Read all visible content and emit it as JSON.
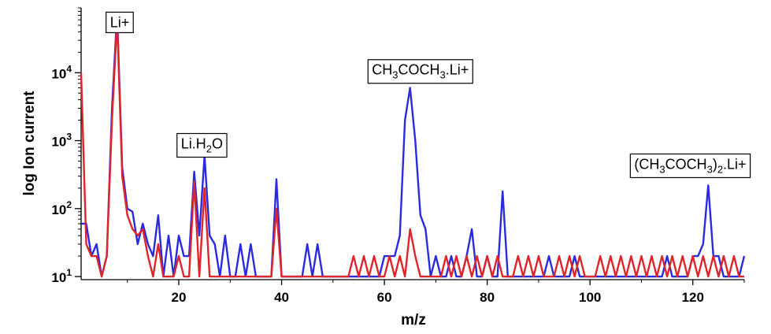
{
  "chart_data": {
    "type": "line",
    "xlabel": "m/z",
    "ylabel": "log Ion current",
    "yscale": "log",
    "xlim": [
      1,
      130
    ],
    "ylim": [
      9,
      90000
    ],
    "grid": false,
    "x_ticks": [
      20,
      40,
      60,
      80,
      100,
      120
    ],
    "x_tick_labels": [
      "20",
      "40",
      "60",
      "80",
      "100",
      "120"
    ],
    "y_ticks": [
      10,
      100,
      1000,
      10000
    ],
    "y_tick_labels": [
      {
        "base": "10",
        "exp": "1"
      },
      {
        "base": "10",
        "exp": "2"
      },
      {
        "base": "10",
        "exp": "3"
      },
      {
        "base": "10",
        "exp": "4"
      }
    ],
    "annotations": [
      {
        "x": 8.5,
        "y": 55000,
        "parts": [
          {
            "t": "Li+"
          }
        ]
      },
      {
        "x": 24.5,
        "y": 900,
        "parts": [
          {
            "t": "Li.H"
          },
          {
            "t": "2",
            "sub": true
          },
          {
            "t": "O"
          }
        ]
      },
      {
        "x": 67,
        "y": 11000,
        "parts": [
          {
            "t": "CH"
          },
          {
            "t": "3",
            "sub": true
          },
          {
            "t": "COCH"
          },
          {
            "t": "3",
            "sub": true
          },
          {
            "t": ".Li+"
          }
        ]
      },
      {
        "x": 119.5,
        "y": 450,
        "parts": [
          {
            "t": "(CH"
          },
          {
            "t": "3",
            "sub": true
          },
          {
            "t": "COCH"
          },
          {
            "t": "3",
            "sub": true
          },
          {
            "t": ")"
          },
          {
            "t": "2",
            "sub": true
          },
          {
            "t": ".Li+"
          }
        ]
      }
    ],
    "series": [
      {
        "color": "#2a2ae0",
        "x": [
          1,
          2,
          3,
          4,
          5,
          6,
          7,
          8,
          9,
          10,
          11,
          12,
          13,
          14,
          15,
          16,
          17,
          18,
          19,
          20,
          21,
          22,
          23,
          24,
          25,
          26,
          27,
          28,
          29,
          30,
          31,
          32,
          33,
          34,
          35,
          36,
          37,
          38,
          39,
          40,
          41,
          42,
          43,
          44,
          45,
          46,
          47,
          48,
          49,
          50,
          51,
          52,
          53,
          54,
          55,
          56,
          57,
          58,
          59,
          60,
          61,
          62,
          63,
          64,
          65,
          66,
          67,
          68,
          69,
          70,
          71,
          72,
          73,
          74,
          75,
          76,
          77,
          78,
          79,
          80,
          81,
          82,
          83,
          84,
          85,
          86,
          87,
          88,
          89,
          90,
          91,
          92,
          93,
          94,
          95,
          96,
          97,
          98,
          99,
          100,
          101,
          102,
          103,
          104,
          105,
          106,
          107,
          108,
          109,
          110,
          111,
          112,
          113,
          114,
          115,
          116,
          117,
          118,
          119,
          120,
          121,
          122,
          123,
          124,
          125,
          126,
          127,
          128,
          129,
          130
        ],
        "y": [
          60,
          60,
          20,
          30,
          10,
          20,
          3000,
          75000,
          400,
          100,
          90,
          30,
          60,
          30,
          20,
          80,
          10,
          40,
          10,
          40,
          20,
          20,
          350,
          40,
          600,
          40,
          30,
          10,
          40,
          10,
          10,
          30,
          10,
          30,
          10,
          10,
          10,
          10,
          270,
          10,
          10,
          10,
          10,
          10,
          30,
          10,
          30,
          10,
          10,
          10,
          10,
          10,
          10,
          10,
          10,
          10,
          10,
          10,
          10,
          20,
          20,
          20,
          40,
          2000,
          6000,
          1000,
          80,
          50,
          10,
          20,
          10,
          10,
          20,
          10,
          10,
          20,
          50,
          10,
          10,
          20,
          10,
          10,
          180,
          10,
          10,
          10,
          10,
          10,
          10,
          10,
          10,
          20,
          10,
          10,
          10,
          10,
          20,
          10,
          10,
          10,
          10,
          10,
          10,
          10,
          10,
          10,
          10,
          10,
          10,
          10,
          10,
          10,
          10,
          10,
          20,
          10,
          10,
          10,
          10,
          20,
          20,
          30,
          220,
          20,
          20,
          10,
          10,
          10,
          10,
          20
        ]
      },
      {
        "color": "#e0252a",
        "x": [
          1,
          2,
          3,
          4,
          5,
          6,
          7,
          8,
          9,
          10,
          11,
          12,
          13,
          14,
          15,
          16,
          17,
          18,
          19,
          20,
          21,
          22,
          23,
          24,
          25,
          26,
          27,
          28,
          29,
          30,
          31,
          32,
          33,
          34,
          35,
          36,
          37,
          38,
          39,
          40,
          41,
          42,
          43,
          44,
          45,
          46,
          47,
          48,
          49,
          50,
          51,
          52,
          53,
          54,
          55,
          56,
          57,
          58,
          59,
          60,
          61,
          62,
          63,
          64,
          65,
          66,
          67,
          68,
          69,
          70,
          71,
          72,
          73,
          74,
          75,
          76,
          77,
          78,
          79,
          80,
          81,
          82,
          83,
          84,
          85,
          86,
          87,
          88,
          89,
          90,
          91,
          92,
          93,
          94,
          95,
          96,
          97,
          98,
          99,
          100,
          101,
          102,
          103,
          104,
          105,
          106,
          107,
          108,
          109,
          110,
          111,
          112,
          113,
          114,
          115,
          116,
          117,
          118,
          119,
          120,
          121,
          122,
          123,
          124,
          125,
          126,
          127,
          128,
          129,
          130
        ],
        "y": [
          10000,
          30,
          20,
          20,
          10,
          20,
          2000,
          60000,
          300,
          80,
          50,
          40,
          50,
          20,
          10,
          30,
          10,
          10,
          10,
          20,
          10,
          10,
          250,
          10,
          200,
          10,
          10,
          10,
          10,
          10,
          10,
          10,
          10,
          10,
          10,
          10,
          10,
          10,
          100,
          10,
          10,
          10,
          10,
          10,
          10,
          10,
          10,
          10,
          10,
          10,
          10,
          10,
          10,
          20,
          10,
          20,
          10,
          20,
          10,
          10,
          20,
          10,
          20,
          10,
          50,
          20,
          10,
          10,
          10,
          10,
          10,
          20,
          10,
          20,
          10,
          20,
          10,
          20,
          10,
          20,
          10,
          20,
          10,
          10,
          10,
          20,
          10,
          20,
          10,
          20,
          10,
          10,
          10,
          20,
          10,
          20,
          10,
          20,
          10,
          10,
          10,
          20,
          10,
          20,
          10,
          20,
          10,
          20,
          10,
          20,
          10,
          20,
          10,
          20,
          10,
          20,
          10,
          20,
          10,
          20,
          10,
          20,
          10,
          20,
          10,
          20,
          10,
          20,
          10,
          10
        ]
      }
    ]
  }
}
